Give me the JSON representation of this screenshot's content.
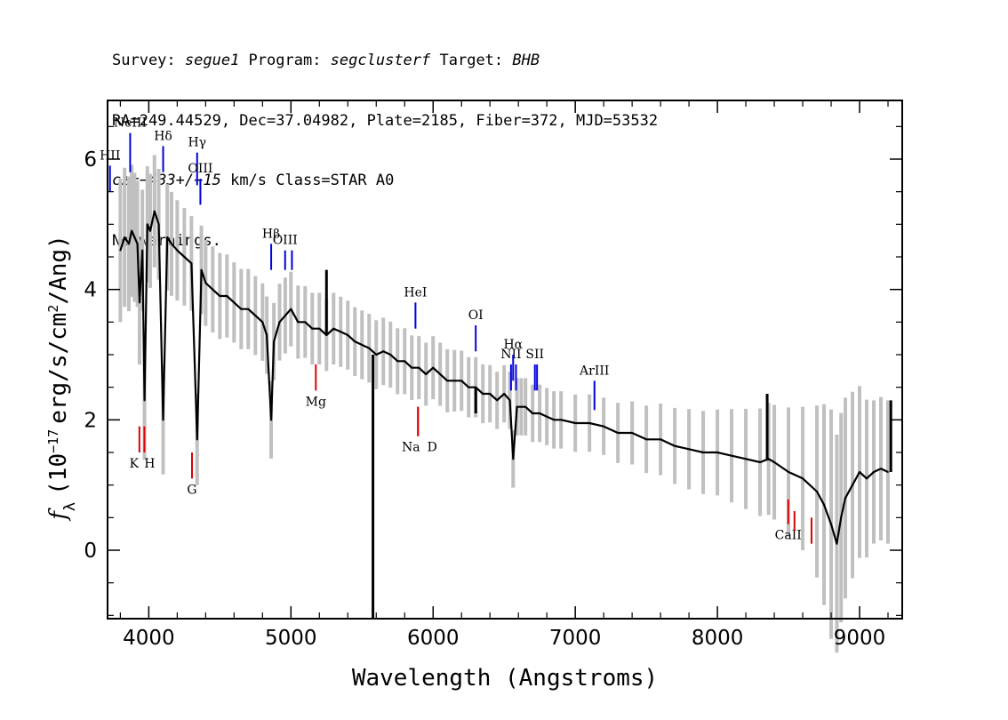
{
  "header": {
    "line1": {
      "survey_label": "Survey: ",
      "survey": "segue1",
      "program_label": " Program: ",
      "program": "segclusterf",
      "target_label": " Target: ",
      "target": "BHB"
    },
    "line2": "RA=249.44529, Dec=37.04982, Plate=2185, Fiber=372, MJD=53532",
    "line3": {
      "cz_label": "cz=",
      "cz_value": "−433+/−15",
      "cz_rest": " km/s Class=STAR A0"
    },
    "line4": "No warnings."
  },
  "chart_data": {
    "type": "line",
    "title": "",
    "xlabel": "Wavelength (Angstroms)",
    "ylabel_parts": {
      "symbol": "f",
      "subscript": "λ",
      "open": "(10",
      "exponent": "−17",
      "units_a": "erg/s/cm",
      "units_exp": "2",
      "units_b": "/Ang)"
    },
    "xlim": [
      3710,
      9300
    ],
    "ylim": [
      -1.05,
      6.9
    ],
    "xticks": [
      4000,
      5000,
      6000,
      7000,
      8000,
      9000
    ],
    "xtick_labels": [
      "4000",
      "5000",
      "6000",
      "7000",
      "8000",
      "9000"
    ],
    "yticks": [
      0,
      2,
      4,
      6
    ],
    "ytick_labels": [
      "0",
      "2",
      "4",
      "6"
    ],
    "grid": false,
    "colors": {
      "flux": "#000000",
      "noise": "#c0c0c0",
      "emission": "#0000dd",
      "absorption": "#dd0000"
    },
    "series": [
      {
        "role": "flux",
        "x": [
          3800,
          3830,
          3860,
          3880,
          3900,
          3920,
          3935,
          3955,
          3970,
          3990,
          4010,
          4040,
          4070,
          4101,
          4130,
          4160,
          4200,
          4250,
          4300,
          4340,
          4370,
          4400,
          4450,
          4500,
          4550,
          4600,
          4650,
          4700,
          4750,
          4800,
          4830,
          4861,
          4880,
          4920,
          4960,
          5000,
          5050,
          5100,
          5150,
          5200,
          5250,
          5300,
          5350,
          5400,
          5450,
          5500,
          5550,
          5600,
          5650,
          5700,
          5750,
          5800,
          5850,
          5900,
          5950,
          6000,
          6050,
          6100,
          6150,
          6200,
          6250,
          6300,
          6350,
          6400,
          6450,
          6500,
          6540,
          6563,
          6590,
          6620,
          6650,
          6700,
          6750,
          6800,
          6850,
          6900,
          7000,
          7100,
          7200,
          7300,
          7400,
          7500,
          7600,
          7700,
          7800,
          7900,
          8000,
          8100,
          8200,
          8300,
          8360,
          8400,
          8500,
          8600,
          8700,
          8750,
          8800,
          8840,
          8870,
          8900,
          8950,
          9000,
          9050,
          9100,
          9150,
          9200
        ],
        "y": [
          4.6,
          4.8,
          4.7,
          4.9,
          4.8,
          4.7,
          3.8,
          4.6,
          2.3,
          5.0,
          4.9,
          5.2,
          5.0,
          2.0,
          4.8,
          4.7,
          4.6,
          4.5,
          4.4,
          1.7,
          4.3,
          4.1,
          4.0,
          3.9,
          3.9,
          3.8,
          3.7,
          3.7,
          3.6,
          3.5,
          3.3,
          2.0,
          3.2,
          3.5,
          3.6,
          3.7,
          3.5,
          3.5,
          3.4,
          3.4,
          3.3,
          3.4,
          3.35,
          3.3,
          3.2,
          3.15,
          3.1,
          3.0,
          3.05,
          3.0,
          2.9,
          2.9,
          2.8,
          2.8,
          2.7,
          2.8,
          2.7,
          2.6,
          2.6,
          2.6,
          2.5,
          2.5,
          2.4,
          2.4,
          2.3,
          2.4,
          2.3,
          1.4,
          2.2,
          2.2,
          2.2,
          2.1,
          2.1,
          2.05,
          2.0,
          2.0,
          1.95,
          1.95,
          1.9,
          1.8,
          1.8,
          1.7,
          1.7,
          1.6,
          1.55,
          1.5,
          1.5,
          1.45,
          1.4,
          1.35,
          1.4,
          1.35,
          1.2,
          1.1,
          0.9,
          0.7,
          0.4,
          0.1,
          0.5,
          0.8,
          1.0,
          1.2,
          1.1,
          1.2,
          1.25,
          1.2
        ]
      },
      {
        "role": "noise",
        "x": [
          3800,
          3900,
          4000,
          4100,
          4200,
          4300,
          4400,
          4500,
          4600,
          4700,
          4800,
          4900,
          5000,
          5100,
          5200,
          5300,
          5400,
          5500,
          5600,
          5700,
          5800,
          5900,
          6000,
          6100,
          6200,
          6300,
          6400,
          6500,
          6600,
          6700,
          6800,
          6900,
          7000,
          7200,
          7400,
          7600,
          7800,
          8000,
          8200,
          8400,
          8600,
          8700,
          8800,
          8900,
          9000,
          9100,
          9200
        ],
        "y": [
          0.5,
          0.45,
          0.4,
          0.38,
          0.35,
          0.33,
          0.3,
          0.3,
          0.28,
          0.28,
          0.27,
          0.27,
          0.26,
          0.25,
          0.25,
          0.25,
          0.24,
          0.24,
          0.24,
          0.23,
          0.23,
          0.22,
          0.22,
          0.22,
          0.21,
          0.21,
          0.2,
          0.2,
          0.2,
          0.2,
          0.2,
          0.2,
          0.2,
          0.2,
          0.22,
          0.25,
          0.28,
          0.3,
          0.35,
          0.4,
          0.5,
          0.6,
          0.8,
          0.7,
          0.6,
          0.5,
          0.5
        ]
      }
    ],
    "spikes": [
      {
        "x": 5577,
        "y": -1.05,
        "color": "flux"
      },
      {
        "x": 5250,
        "y": 4.3,
        "color": "flux"
      },
      {
        "x": 6300,
        "y": 2.1,
        "color": "flux"
      },
      {
        "x": 8350,
        "y": 2.4,
        "color": "flux"
      },
      {
        "x": 9220,
        "y": 2.3,
        "color": "flux"
      }
    ],
    "annotations": [
      {
        "label": "HII",
        "x": 3727,
        "y_bottom": 5.5,
        "y_top": 5.9,
        "kind": "emission"
      },
      {
        "label": "NeIII",
        "x": 3869,
        "y_bottom": 5.8,
        "y_top": 6.4,
        "kind": "emission"
      },
      {
        "label": "Hδ",
        "x": 4101,
        "y_bottom": 5.8,
        "y_top": 6.2,
        "kind": "emission"
      },
      {
        "label": "Hγ",
        "x": 4340,
        "y_bottom": 5.6,
        "y_top": 6.1,
        "kind": "emission"
      },
      {
        "label": "OIII",
        "x": 4363,
        "y_bottom": 5.3,
        "y_top": 5.7,
        "kind": "emission"
      },
      {
        "label": "Hβ",
        "x": 4861,
        "y_bottom": 4.3,
        "y_top": 4.7,
        "kind": "emission"
      },
      {
        "label": "OIII",
        "x": 4959,
        "y_bottom": 4.3,
        "y_top": 4.6,
        "kind": "emission"
      },
      {
        "label": "",
        "x": 5007,
        "y_bottom": 4.3,
        "y_top": 4.6,
        "kind": "emission"
      },
      {
        "label": "HeI",
        "x": 5876,
        "y_bottom": 3.4,
        "y_top": 3.8,
        "kind": "emission"
      },
      {
        "label": "OI",
        "x": 6300,
        "y_bottom": 3.05,
        "y_top": 3.45,
        "kind": "emission"
      },
      {
        "label": "NII",
        "x": 6548,
        "y_bottom": 2.45,
        "y_top": 2.85,
        "kind": "emission"
      },
      {
        "label": "Hα",
        "x": 6563,
        "y_bottom": 2.6,
        "y_top": 3.0,
        "kind": "emission"
      },
      {
        "label": "",
        "x": 6583,
        "y_bottom": 2.45,
        "y_top": 2.85,
        "kind": "emission"
      },
      {
        "label": "SII",
        "x": 6716,
        "y_bottom": 2.45,
        "y_top": 2.85,
        "kind": "emission"
      },
      {
        "label": "",
        "x": 6731,
        "y_bottom": 2.45,
        "y_top": 2.85,
        "kind": "emission"
      },
      {
        "label": "ArIII",
        "x": 7135,
        "y_bottom": 2.15,
        "y_top": 2.6,
        "kind": "emission"
      },
      {
        "label": "K",
        "x": 3934,
        "y_bottom": 1.5,
        "y_top": 1.9,
        "kind": "absorption"
      },
      {
        "label": "H",
        "x": 3969,
        "y_bottom": 1.5,
        "y_top": 1.9,
        "kind": "absorption"
      },
      {
        "label": "G",
        "x": 4304,
        "y_bottom": 1.1,
        "y_top": 1.5,
        "kind": "absorption"
      },
      {
        "label": "Mg",
        "x": 5175,
        "y_bottom": 2.45,
        "y_top": 2.85,
        "kind": "absorption"
      },
      {
        "label": "Na",
        "x": 5894,
        "y_bottom": 1.75,
        "y_top": 2.2,
        "kind": "absorption"
      },
      {
        "label": "D",
        "x": 5894,
        "y_bottom": 1.75,
        "y_top": 2.2,
        "kind": "absorption"
      },
      {
        "label": "CaII",
        "x": 8498,
        "y_bottom": 0.4,
        "y_top": 0.78,
        "kind": "absorption"
      },
      {
        "label": "",
        "x": 8542,
        "y_bottom": 0.3,
        "y_top": 0.6,
        "kind": "absorption"
      },
      {
        "label": "",
        "x": 8662,
        "y_bottom": 0.1,
        "y_top": 0.5,
        "kind": "absorption"
      }
    ]
  }
}
